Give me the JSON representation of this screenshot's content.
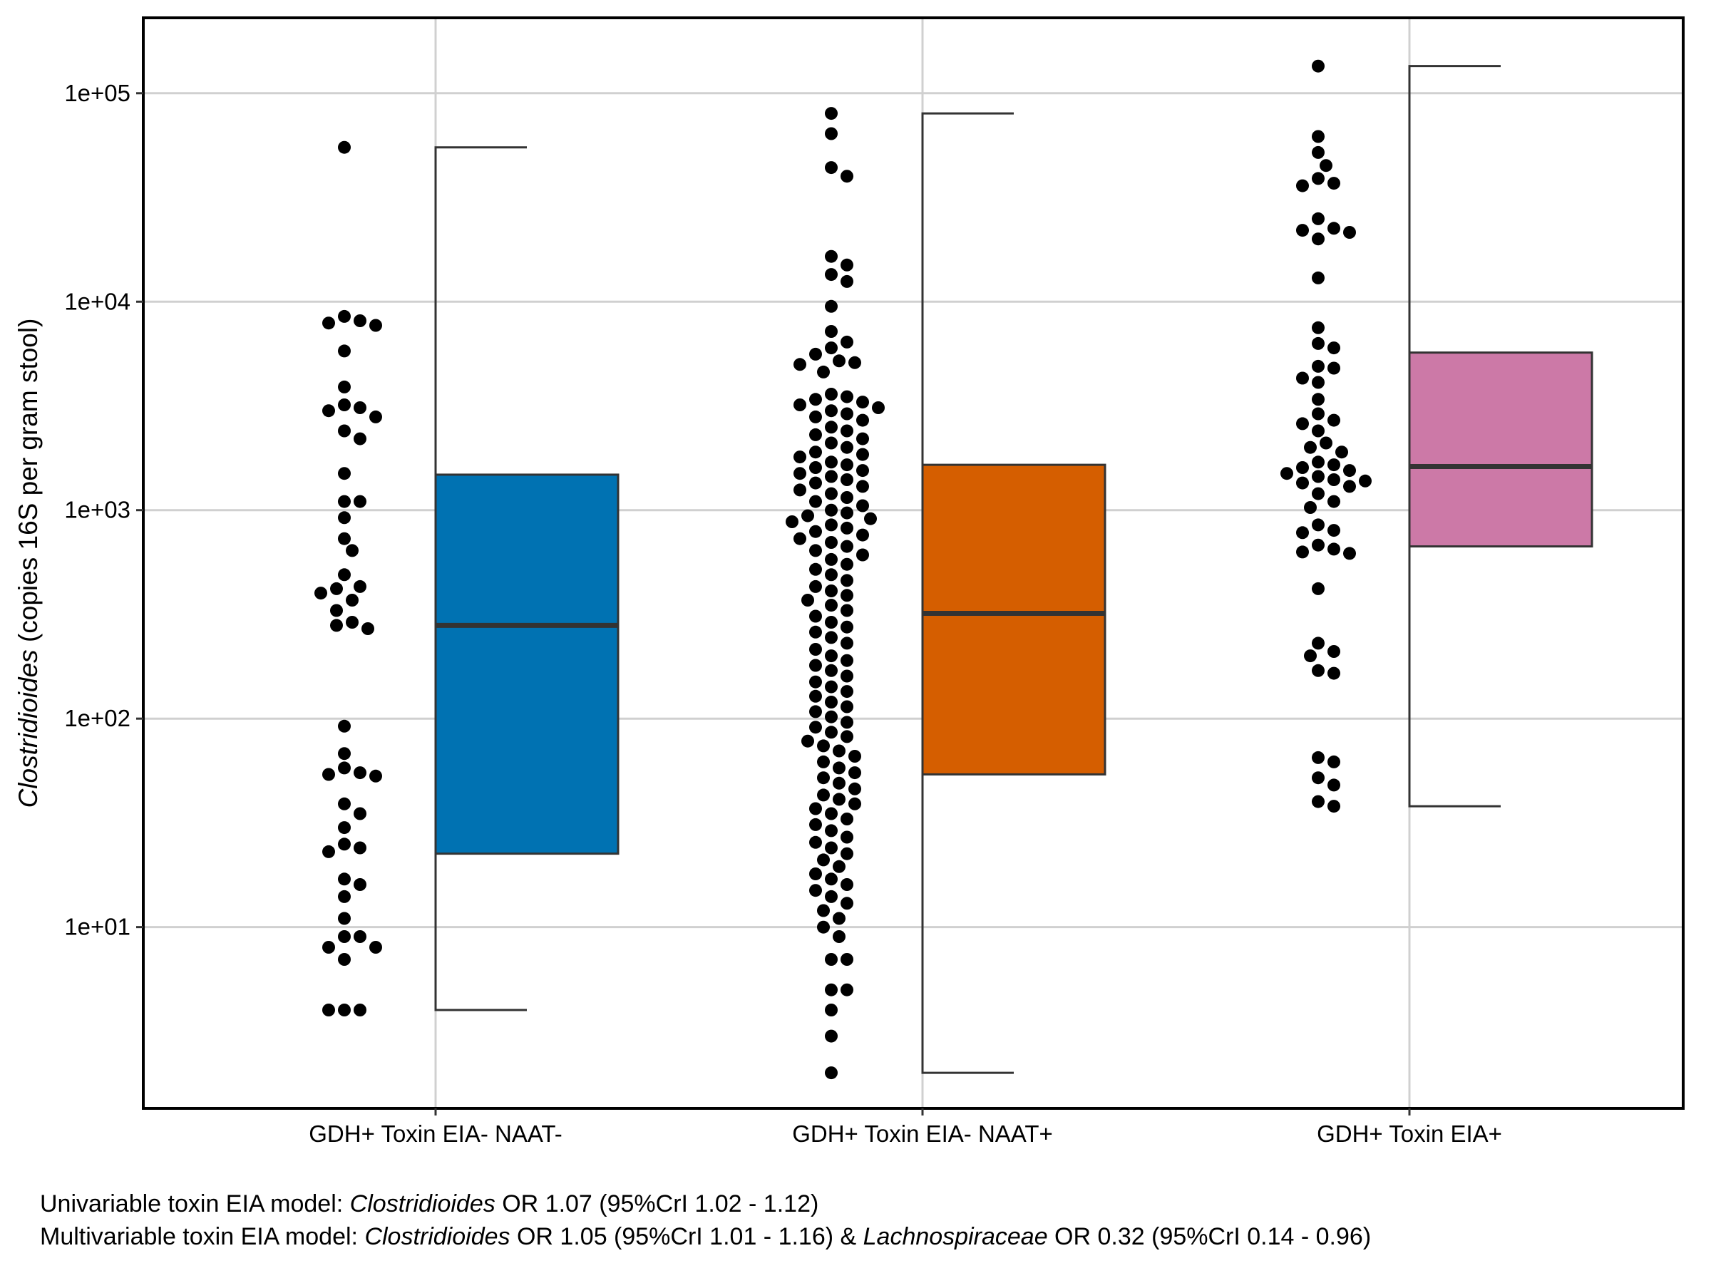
{
  "chart_data": {
    "type": "box",
    "ylabel_italic": "Clostridioides",
    "ylabel_rest": " (copies 16S per gram stool)",
    "yscale": "log10",
    "ylim": [
      1.35,
      230000
    ],
    "yticks": [
      10,
      100,
      1000,
      10000,
      100000
    ],
    "ytick_labels": [
      "1e+01",
      "1e+02",
      "1e+03",
      "1e+04",
      "1e+05"
    ],
    "grid": true,
    "categories": [
      "GDH+ Toxin EIA- NAAT-",
      "GDH+ Toxin EIA- NAAT+",
      "GDH+ Toxin EIA+"
    ],
    "colors": {
      "box_1": "#0072B2",
      "box_2": "#D55E00",
      "box_3": "#CC79A7",
      "points": "#000000",
      "lines": "#333333",
      "grid": "#d0d0d0"
    },
    "boxes": [
      {
        "name": "GDH+ Toxin EIA- NAAT-",
        "q1": 22.5,
        "median": 280,
        "q3": 1480,
        "whisker_low": 4,
        "whisker_high": 55000
      },
      {
        "name": "GDH+ Toxin EIA- NAAT+",
        "q1": 54,
        "median": 320,
        "q3": 1650,
        "whisker_low": 2,
        "whisker_high": 80000
      },
      {
        "name": "GDH+ Toxin EIA+",
        "q1": 670,
        "median": 1620,
        "q3": 5700,
        "whisker_low": 38,
        "whisker_high": 135000
      }
    ],
    "points": [
      [
        55000,
        8500,
        8100,
        7900,
        7700,
        5800,
        3900,
        3200,
        3100,
        3000,
        2800,
        2400,
        2200,
        1500,
        1100,
        1100,
        920,
        730,
        640,
        490,
        430,
        420,
        400,
        370,
        330,
        290,
        280,
        270,
        92,
        68,
        58,
        55,
        54,
        53,
        39,
        35,
        30,
        25,
        24,
        23,
        17,
        16,
        14,
        11,
        9,
        9,
        8,
        8,
        7,
        4,
        4,
        4
      ],
      [
        80000,
        64000,
        44000,
        40000,
        16500,
        15000,
        13500,
        12500,
        9500,
        7200,
        6400,
        6000,
        5600,
        5200,
        5100,
        5000,
        4600,
        3600,
        3500,
        3400,
        3300,
        3200,
        3100,
        3000,
        2900,
        2800,
        2700,
        2500,
        2400,
        2300,
        2200,
        2100,
        2000,
        1900,
        1850,
        1800,
        1700,
        1650,
        1600,
        1550,
        1500,
        1450,
        1400,
        1350,
        1300,
        1250,
        1200,
        1150,
        1100,
        1050,
        1000,
        970,
        940,
        910,
        880,
        850,
        820,
        790,
        760,
        730,
        700,
        670,
        640,
        610,
        580,
        550,
        520,
        490,
        460,
        430,
        410,
        390,
        370,
        350,
        330,
        310,
        290,
        275,
        260,
        245,
        230,
        215,
        200,
        190,
        180,
        170,
        160,
        150,
        142,
        135,
        128,
        120,
        114,
        108,
        102,
        96,
        91,
        86,
        82,
        78,
        74,
        70,
        66,
        62,
        58,
        55,
        52,
        49,
        46,
        43,
        41,
        39,
        37,
        35,
        33,
        31,
        29,
        27,
        25.5,
        24,
        22.5,
        21,
        19.5,
        18,
        17,
        16,
        15,
        14,
        13,
        12,
        11,
        10,
        9,
        7,
        7,
        5,
        5,
        4,
        3,
        2
      ],
      [
        135000,
        62000,
        52000,
        45000,
        39000,
        37000,
        36000,
        25000,
        22500,
        22000,
        21500,
        20000,
        13000,
        7500,
        6300,
        6000,
        4900,
        4800,
        4300,
        4100,
        3400,
        2900,
        2700,
        2600,
        2400,
        2100,
        2000,
        1900,
        1700,
        1650,
        1600,
        1550,
        1500,
        1450,
        1400,
        1380,
        1350,
        1300,
        1200,
        1100,
        1030,
        850,
        800,
        780,
        680,
        650,
        630,
        620,
        420,
        230,
        210,
        200,
        170,
        165,
        65,
        62,
        52,
        48,
        40,
        38
      ]
    ]
  },
  "footer": {
    "line1": {
      "a": "Univariable toxin EIA model: ",
      "b": "Clostridioides",
      "c": " OR 1.07 (95%CrI 1.02 - 1.12)"
    },
    "line2": {
      "a": "Multivariable toxin EIA model: ",
      "b": "Clostridioides",
      "c": " OR 1.05 (95%CrI 1.01 - 1.16) & ",
      "d": "Lachnospiraceae",
      "e": " OR 0.32 (95%CrI 0.14 - 0.96)"
    }
  }
}
